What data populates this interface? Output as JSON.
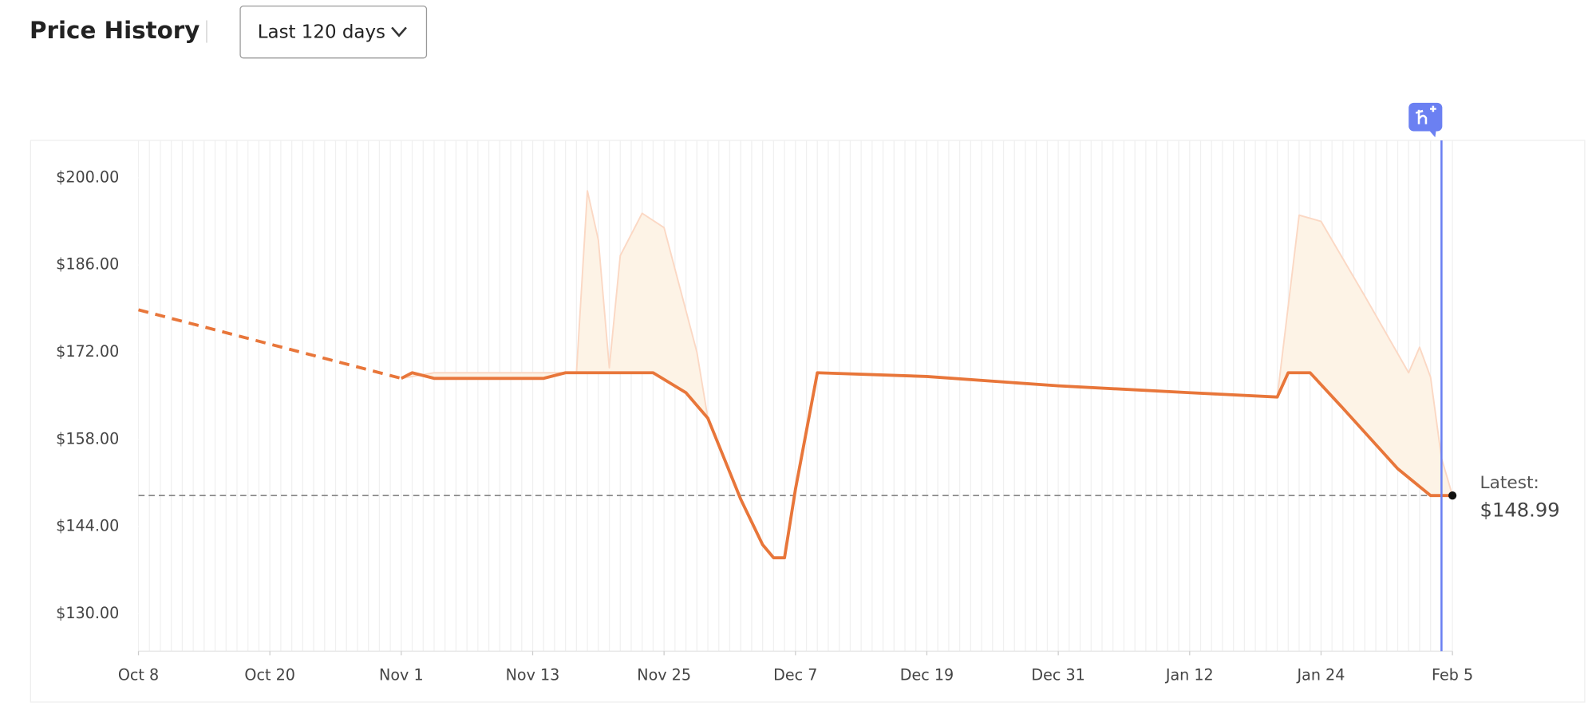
{
  "header": {
    "title": "Price History",
    "range_selector": "Last 120 days"
  },
  "chart_data": {
    "type": "line",
    "xlim": [
      0,
      120
    ],
    "xticks": [
      {
        "value": 0,
        "label": "Oct 8"
      },
      {
        "value": 12,
        "label": "Oct 20"
      },
      {
        "value": 24,
        "label": "Nov 1"
      },
      {
        "value": 36,
        "label": "Nov 13"
      },
      {
        "value": 48,
        "label": "Nov 25"
      },
      {
        "value": 60,
        "label": "Dec 7"
      },
      {
        "value": 72,
        "label": "Dec 19"
      },
      {
        "value": 84,
        "label": "Dec 31"
      },
      {
        "value": 96,
        "label": "Jan 12"
      },
      {
        "value": 108,
        "label": "Jan 24"
      },
      {
        "value": 120,
        "label": "Feb 5"
      }
    ],
    "ylim": [
      124,
      206
    ],
    "yticks": [
      {
        "value": 130,
        "label": "$130.00"
      },
      {
        "value": 144,
        "label": "$144.00"
      },
      {
        "value": 158,
        "label": "$158.00"
      },
      {
        "value": 172,
        "label": "$172.00"
      },
      {
        "value": 186,
        "label": "$186.00"
      },
      {
        "value": 200,
        "label": "$200.00"
      }
    ],
    "series": [
      {
        "color": "#e8763a",
        "dashed": true,
        "x": [
          0,
          24
        ],
        "values": [
          178.8,
          167.8
        ]
      },
      {
        "color": "#e8763a",
        "x": [
          24,
          25,
          27,
          37,
          39,
          47,
          50,
          52,
          55,
          57,
          58,
          59,
          60,
          62,
          72,
          84,
          96,
          104,
          105,
          107,
          110,
          115,
          118,
          120
        ],
        "values": [
          167.8,
          168.7,
          167.8,
          167.8,
          168.7,
          168.7,
          165.5,
          161.4,
          148.4,
          141.1,
          139,
          139,
          150,
          168.7,
          168.1,
          166.6,
          165.5,
          164.8,
          168.7,
          168.7,
          163,
          153.3,
          148.99,
          148.99
        ]
      },
      {
        "color": "#fbd8c4",
        "fill": "#fdf3e6",
        "x": [
          24,
          27,
          39,
          40,
          41,
          42,
          43,
          44,
          46,
          48,
          51,
          52,
          55,
          57,
          58,
          59,
          60,
          62,
          72,
          84,
          96,
          104,
          106,
          108,
          112,
          116,
          117,
          118,
          119,
          120
        ],
        "values": [
          167.8,
          168.7,
          168.7,
          168.7,
          197.9,
          190,
          169.5,
          187.5,
          194.3,
          192,
          172,
          161.4,
          148.4,
          141.1,
          139,
          139,
          150,
          168.7,
          168.1,
          166.6,
          165.5,
          164.8,
          194,
          193,
          181,
          168.7,
          172.8,
          168,
          155,
          148.99
        ]
      }
    ],
    "latest": {
      "label": "Latest:",
      "value": 148.99,
      "value_label": "$148.99"
    },
    "highlight_x": 119,
    "grid": true
  }
}
